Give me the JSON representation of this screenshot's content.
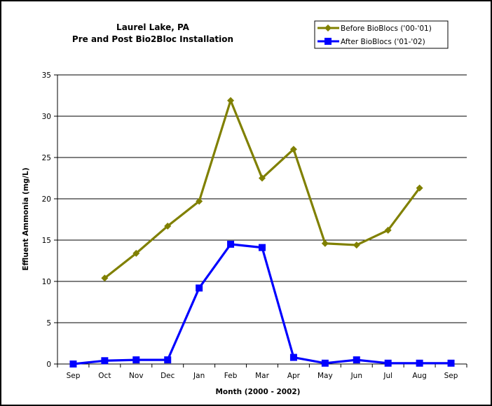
{
  "chart_data": {
    "type": "line",
    "title_lines": [
      "Laurel Lake, PA",
      "Pre and Post Bio2Bloc Installation"
    ],
    "xlabel": "Month (2000 - 2002)",
    "ylabel": "Effluent Ammonia (mg/L)",
    "categories": [
      "Sep",
      "Oct",
      "Nov",
      "Dec",
      "Jan",
      "Feb",
      "Mar",
      "Apr",
      "May",
      "Jun",
      "Jul",
      "Aug",
      "Sep"
    ],
    "ylim": [
      0,
      35
    ],
    "yticks": [
      0,
      5,
      10,
      15,
      20,
      25,
      30,
      35
    ],
    "grid": "horizontal",
    "legend_position": "top-right",
    "series": [
      {
        "name": "Before BioBlocs ('00-'01)",
        "color": "#808000",
        "marker": "diamond",
        "values": [
          null,
          10.4,
          13.4,
          16.7,
          19.7,
          31.9,
          22.5,
          26.0,
          14.6,
          14.4,
          16.2,
          21.3,
          null
        ]
      },
      {
        "name": "After BioBlocs ('01-'02)",
        "color": "#0000ff",
        "marker": "square",
        "values": [
          0.0,
          0.4,
          0.5,
          0.5,
          9.2,
          14.5,
          14.1,
          0.8,
          0.1,
          0.5,
          0.1,
          0.1,
          0.1
        ]
      }
    ]
  }
}
